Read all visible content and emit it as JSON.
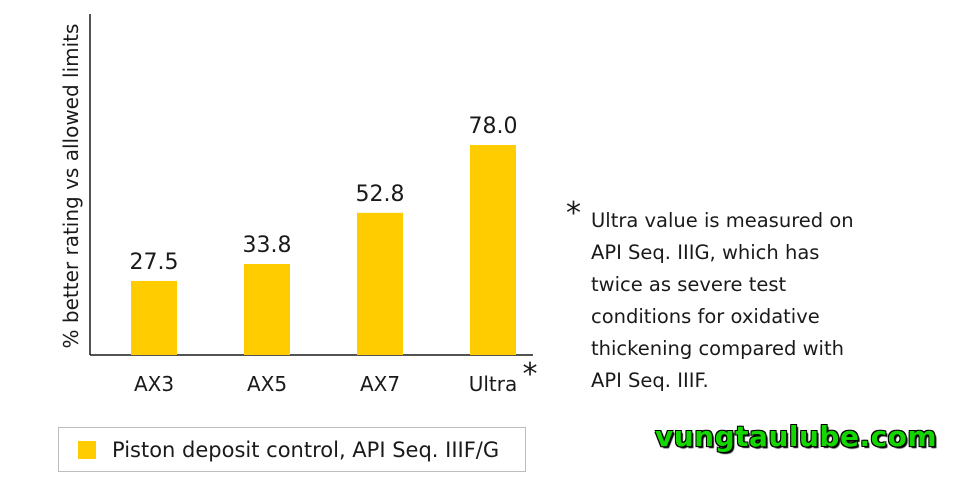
{
  "chart_data": {
    "type": "bar",
    "categories": [
      "AX3",
      "AX5",
      "AX7",
      "Ultra"
    ],
    "values": [
      27.5,
      33.8,
      52.8,
      78.0
    ],
    "value_labels": [
      "27.5",
      "33.8",
      "52.8",
      "78.0"
    ],
    "category_markers": [
      "",
      "",
      "",
      "*"
    ],
    "ylabel": "% better rating vs allowed limits",
    "xlabel": "",
    "ylim": [
      0,
      78
    ],
    "grid": false,
    "legend": {
      "placement": "bottom-left",
      "entries": [
        "Piston deposit control, API Seq. IIIF/G"
      ]
    },
    "bar_color": "#ffcc00"
  },
  "footnote": {
    "marker": "*",
    "text": "Ultra value is measured on API Seq. IIIG, which has twice as severe test conditions for oxidative thickening compared with API Seq. IIIF."
  },
  "watermark": "vungtaulube.com"
}
